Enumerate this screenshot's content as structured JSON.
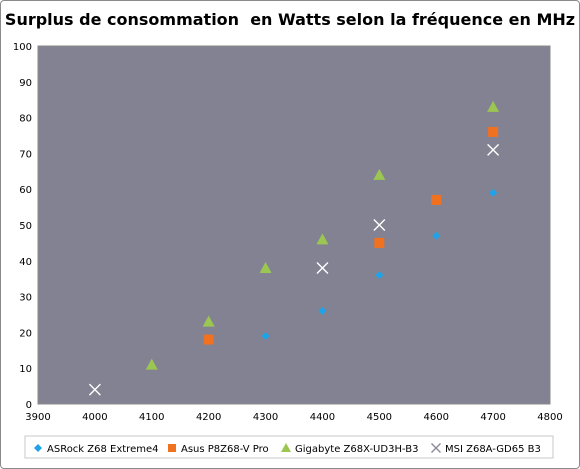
{
  "chart_data": {
    "type": "scatter",
    "title": "Surplus de consommation  en Watts selon la fréquence en MHz",
    "xlabel": "",
    "ylabel": "",
    "xlim": [
      3900,
      4800
    ],
    "ylim": [
      0,
      100
    ],
    "xticks": [
      3900,
      4000,
      4100,
      4200,
      4300,
      4400,
      4500,
      4600,
      4700,
      4800
    ],
    "yticks": [
      0,
      10,
      20,
      30,
      40,
      50,
      60,
      70,
      80,
      90,
      100
    ],
    "plot_background": "#838292",
    "grid": false,
    "legend_position": "bottom",
    "series": [
      {
        "name": "ASRock Z68 Extreme4",
        "marker": "diamond",
        "color": "#1fa3e8",
        "points": [
          [
            4300,
            19
          ],
          [
            4400,
            26
          ],
          [
            4500,
            36
          ],
          [
            4600,
            47
          ],
          [
            4700,
            59
          ]
        ]
      },
      {
        "name": "Asus P8Z68-V Pro",
        "marker": "square",
        "color": "#f07120",
        "points": [
          [
            4200,
            18
          ],
          [
            4500,
            45
          ],
          [
            4600,
            57
          ],
          [
            4700,
            76
          ]
        ]
      },
      {
        "name": "Gigabyte Z68X-UD3H-B3",
        "marker": "triangle",
        "color": "#9bc652",
        "points": [
          [
            4100,
            11
          ],
          [
            4200,
            23
          ],
          [
            4300,
            38
          ],
          [
            4400,
            46
          ],
          [
            4500,
            64
          ],
          [
            4700,
            83
          ]
        ]
      },
      {
        "name": "MSI Z68A-GD65 B3",
        "marker": "x",
        "color": "#ffffff",
        "points": [
          [
            4000,
            4
          ],
          [
            4400,
            38
          ],
          [
            4500,
            50
          ],
          [
            4700,
            71
          ]
        ]
      }
    ]
  }
}
